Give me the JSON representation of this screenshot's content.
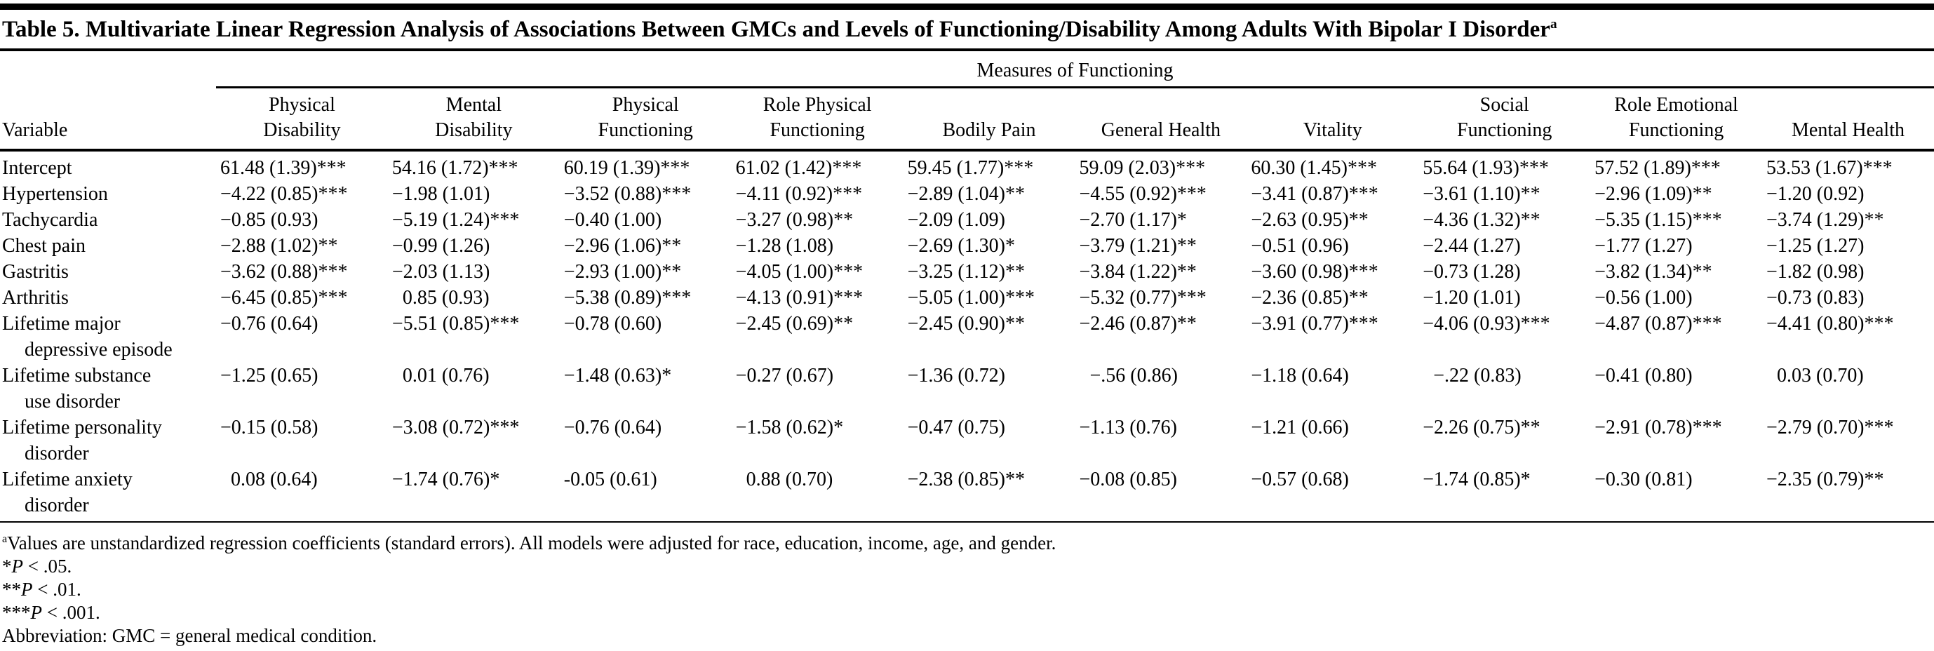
{
  "page": {
    "background": "#ffffff",
    "text_color": "#000000"
  },
  "table": {
    "title": "Table 5. Multivariate Linear Regression Analysis of Associations Between GMCs and Levels of Functioning/Disability Among Adults With Bipolar I Disorder",
    "title_footnote_marker": "a",
    "spanner_heading": "Measures of Functioning",
    "stub_header": "Variable",
    "columns": [
      [
        "Physical",
        "Disability"
      ],
      [
        "Mental",
        "Disability"
      ],
      [
        "Physical",
        "Functioning"
      ],
      [
        "Role Physical",
        "Functioning"
      ],
      [
        "Bodily Pain"
      ],
      [
        "General Health"
      ],
      [
        "Vitality"
      ],
      [
        "Social",
        "Functioning"
      ],
      [
        "Role Emotional",
        "Functioning"
      ],
      [
        "Mental Health"
      ]
    ],
    "rows": [
      {
        "label_lines": [
          "Intercept"
        ],
        "values": [
          "61.48 (1.39)***",
          "54.16 (1.72)***",
          "60.19 (1.39)***",
          "61.02 (1.42)***",
          "59.45 (1.77)***",
          "59.09 (2.03)***",
          "60.30 (1.45)***",
          "55.64 (1.93)***",
          "57.52 (1.89)***",
          "53.53 (1.67)***"
        ]
      },
      {
        "label_lines": [
          "Hypertension"
        ],
        "values": [
          "−4.22 (0.85)***",
          "−1.98 (1.01)",
          "−3.52 (0.88)***",
          "−4.11 (0.92)***",
          "−2.89 (1.04)**",
          "−4.55 (0.92)***",
          "−3.41 (0.87)***",
          "−3.61 (1.10)**",
          "−2.96 (1.09)**",
          "−1.20 (0.92)"
        ]
      },
      {
        "label_lines": [
          "Tachycardia"
        ],
        "values": [
          "−0.85 (0.93)",
          "−5.19 (1.24)***",
          "−0.40 (1.00)",
          "−3.27 (0.98)**",
          "−2.09 (1.09)",
          "−2.70 (1.17)*",
          "−2.63 (0.95)**",
          "−4.36 (1.32)**",
          "−5.35 (1.15)***",
          "−3.74 (1.29)**"
        ]
      },
      {
        "label_lines": [
          "Chest pain"
        ],
        "values": [
          "−2.88 (1.02)**",
          "−0.99 (1.26)",
          "−2.96 (1.06)**",
          "−1.28 (1.08)",
          "−2.69 (1.30)*",
          "−3.79 (1.21)**",
          "−0.51 (0.96)",
          "−2.44 (1.27)",
          "−1.77 (1.27)",
          "−1.25 (1.27)"
        ]
      },
      {
        "label_lines": [
          "Gastritis"
        ],
        "values": [
          "−3.62 (0.88)***",
          "−2.03 (1.13)",
          "−2.93 (1.00)**",
          "−4.05 (1.00)***",
          "−3.25 (1.12)**",
          "−3.84 (1.22)**",
          "−3.60 (0.98)***",
          "−0.73 (1.28)",
          "−3.82 (1.34)**",
          "−1.82 (0.98)"
        ]
      },
      {
        "label_lines": [
          "Arthritis"
        ],
        "values": [
          "−6.45 (0.85)***",
          "0.85 (0.93)",
          "−5.38 (0.89)***",
          "−4.13 (0.91)***",
          "−5.05 (1.00)***",
          "−5.32 (0.77)***",
          "−2.36 (0.85)**",
          "−1.20 (1.01)",
          "−0.56 (1.00)",
          "−0.73 (0.83)"
        ]
      },
      {
        "label_lines": [
          "Lifetime major",
          "depressive episode"
        ],
        "values": [
          "−0.76 (0.64)",
          "−5.51 (0.85)***",
          "−0.78 (0.60)",
          "−2.45 (0.69)**",
          "−2.45 (0.90)**",
          "−2.46 (0.87)**",
          "−3.91 (0.77)***",
          "−4.06 (0.93)***",
          "−4.87 (0.87)***",
          "−4.41 (0.80)***"
        ]
      },
      {
        "label_lines": [
          "Lifetime substance",
          "use disorder"
        ],
        "values": [
          "−1.25 (0.65)",
          "0.01 (0.76)",
          "−1.48 (0.63)*",
          "−0.27 (0.67)",
          "−1.36 (0.72)",
          "−.56 (0.86)",
          "−1.18 (0.64)",
          "−.22 (0.83)",
          "−0.41 (0.80)",
          "0.03 (0.70)"
        ]
      },
      {
        "label_lines": [
          "Lifetime personality",
          "disorder"
        ],
        "values": [
          "−0.15 (0.58)",
          "−3.08 (0.72)***",
          "−0.76 (0.64)",
          "−1.58 (0.62)*",
          "−0.47 (0.75)",
          "−1.13 (0.76)",
          "−1.21 (0.66)",
          "−2.26 (0.75)**",
          "−2.91 (0.78)***",
          "−2.79 (0.70)***"
        ]
      },
      {
        "label_lines": [
          "Lifetime anxiety",
          "disorder"
        ],
        "values": [
          "0.08 (0.64)",
          "−1.74 (0.76)*",
          "-0.05 (0.61)",
          "0.88 (0.70)",
          "−2.38 (0.85)**",
          "−0.08 (0.85)",
          "−0.57 (0.68)",
          "−1.74 (0.85)*",
          "−0.30 (0.81)",
          "−2.35 (0.79)**"
        ]
      }
    ],
    "footnotes": [
      {
        "sup": "a",
        "text": "Values are unstandardized regression coefficients (standard errors). All models were adjusted for race, education, income, age, and gender."
      },
      {
        "pre": "*",
        "em": "P",
        "text": " < .05."
      },
      {
        "pre": "**",
        "em": "P",
        "text": " < .01."
      },
      {
        "pre": "***",
        "em": "P",
        "text": " < .001."
      },
      {
        "text": "Abbreviation: GMC = general medical condition."
      }
    ]
  }
}
